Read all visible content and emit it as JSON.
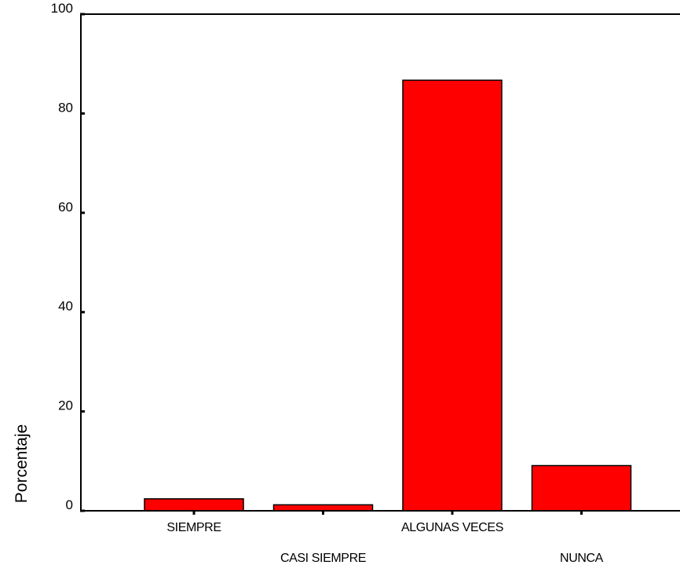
{
  "chart_data": {
    "type": "bar",
    "categories": [
      "SIEMPRE",
      "CASI SIEMPRE",
      "ALGUNAS VECES",
      "NUNCA"
    ],
    "values": [
      2.4,
      1.2,
      86.7,
      9.1
    ],
    "title": "",
    "xlabel": "",
    "ylabel": "Porcentaje",
    "ylim": [
      0,
      100
    ],
    "yticks": [
      "0",
      "20",
      "40",
      "60",
      "80",
      "100"
    ],
    "grid": false,
    "colors": {
      "bar_fill": "#ff0000",
      "bar_edge": "#000000",
      "axis": "#000000"
    }
  }
}
